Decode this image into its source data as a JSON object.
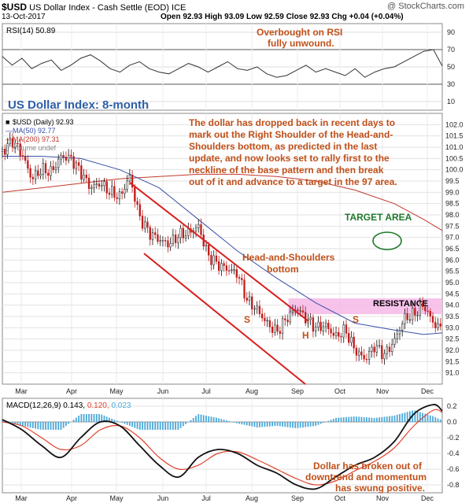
{
  "header": {
    "symbol": "$USD",
    "name": "US Dollar Index - Cash Settle (EOD)",
    "exchange": "ICE",
    "watermark": "@ StockCharts.com",
    "date": "13-Oct-2017",
    "ohlc": {
      "open_label": "Open",
      "open": "92.93",
      "high_label": "High",
      "high": "93.09",
      "low_label": "Low",
      "low": "92.59",
      "close_label": "Close",
      "close": "92.93",
      "chg_label": "Chg",
      "chg": "+0.04 (+0.04%)"
    }
  },
  "chart_data": [
    {
      "type": "line",
      "panel": "rsi",
      "legend": "RSI(14) 50.89",
      "ylim": [
        0,
        100
      ],
      "yticks": [
        "90",
        "70",
        "50",
        "30",
        "10"
      ],
      "overbought": 70,
      "oversold": 30,
      "annotation": [
        "Overbought on RSI",
        "fully unwound."
      ],
      "x": [
        0,
        10,
        20,
        30,
        40,
        50,
        60,
        70,
        80,
        90,
        100,
        110,
        120,
        130,
        140,
        150,
        160,
        170,
        180,
        190,
        200,
        210,
        220,
        230,
        240,
        250,
        260,
        270,
        280,
        290,
        300,
        310,
        320,
        330,
        340,
        350,
        360,
        370,
        380,
        390,
        400,
        410,
        420,
        430,
        440,
        449
      ],
      "values": [
        62,
        52,
        60,
        48,
        54,
        58,
        46,
        52,
        60,
        64,
        57,
        48,
        44,
        52,
        56,
        48,
        44,
        42,
        48,
        54,
        50,
        44,
        50,
        56,
        48,
        46,
        50,
        42,
        38,
        40,
        46,
        52,
        44,
        48,
        44,
        40,
        48,
        38,
        44,
        48,
        50,
        56,
        62,
        68,
        70,
        51
      ]
    },
    {
      "type": "candlestick",
      "panel": "price",
      "title": "US Dollar Index: 8-month",
      "legend": [
        {
          "symbol": "■",
          "label": "$USD (Daily) 92.93",
          "color": "#000000"
        },
        {
          "symbol": "—",
          "label": "MA(50) 92.77",
          "color": "#3a4fa8"
        },
        {
          "symbol": "—",
          "label": "MA(200) 97.31",
          "color": "#c0392b"
        },
        {
          "symbol": "▯",
          "label": "Volume undef",
          "color": "#888888"
        }
      ],
      "ylim": [
        90.5,
        102.5
      ],
      "yticks": [
        "102.0",
        "101.5",
        "101.0",
        "100.5",
        "100.0",
        "99.5",
        "99.0",
        "98.5",
        "98.0",
        "97.5",
        "97.0",
        "96.5",
        "96.0",
        "95.5",
        "95.0",
        "94.5",
        "94.0",
        "93.5",
        "93.0",
        "92.5",
        "92.0",
        "91.5",
        "91.0"
      ],
      "xticks": [
        "Mar",
        "Apr",
        "May",
        "Jun",
        "Jul",
        "Aug",
        "Sep",
        "Oct",
        "Nov",
        "Dec"
      ],
      "xtick_pos": [
        27,
        91,
        148,
        207,
        262,
        320,
        378,
        432,
        486,
        543
      ],
      "close_x": [
        0,
        10,
        20,
        30,
        40,
        50,
        60,
        70,
        80,
        90,
        100,
        110,
        120,
        130,
        140,
        150,
        160,
        170,
        180,
        190,
        200,
        210,
        220,
        230,
        240,
        250,
        260,
        270,
        280,
        290,
        300,
        310,
        320,
        330,
        340,
        350,
        360,
        370,
        380,
        390,
        400,
        410,
        420,
        430,
        440,
        449
      ],
      "close": [
        100.8,
        101.3,
        100.7,
        99.6,
        100.0,
        99.9,
        100.6,
        100.5,
        99.9,
        99.2,
        99.4,
        99.0,
        98.8,
        99.7,
        97.9,
        97.2,
        96.9,
        96.7,
        97.1,
        97.2,
        97.5,
        96.2,
        95.8,
        95.6,
        95.4,
        94.2,
        93.8,
        93.2,
        92.8,
        93.4,
        93.9,
        93.4,
        93.0,
        93.1,
        92.6,
        92.9,
        92.0,
        91.6,
        92.2,
        91.8,
        92.4,
        93.4,
        93.6,
        94.0,
        93.2,
        92.9
      ],
      "ma50_x": [
        0,
        40,
        80,
        120,
        160,
        200,
        240,
        280,
        320,
        360,
        400,
        430,
        449
      ],
      "ma50": [
        100.6,
        100.6,
        100.5,
        100.0,
        99.2,
        97.8,
        96.4,
        95.2,
        94.1,
        93.2,
        92.9,
        92.7,
        92.77
      ],
      "ma200_x": [
        0,
        40,
        80,
        120,
        160,
        200,
        240,
        280,
        320,
        360,
        400,
        430,
        449
      ],
      "ma200": [
        99.0,
        99.2,
        99.4,
        99.6,
        99.7,
        99.8,
        99.8,
        99.7,
        99.5,
        99.1,
        98.5,
        97.8,
        97.31
      ],
      "resistance": {
        "label": "RESISTANCE",
        "from": 93.6,
        "to": 94.3
      },
      "labels": {
        "h_and_s": [
          "Head-and-Shoulders",
          "bottom"
        ],
        "target": "TARGET AREA",
        "s": "S",
        "h": "H"
      },
      "comment": [
        "The dollar has dropped back in recent days to",
        "mark out the Right Shoulder of the Head-and-",
        "Shoulders bottom, as predicted in the last",
        "update, and now looks set to rally first to the",
        "neckline of the base pattern and then break",
        "out of it and advance to a target in the 97 area."
      ]
    },
    {
      "type": "line",
      "panel": "macd",
      "legend_prefix": "MACD(12,26,9)",
      "legend_values": [
        "0.143,",
        "0.120,",
        "0.023"
      ],
      "ylim": [
        -0.9,
        0.3
      ],
      "yticks": [
        "0.2",
        "0.0",
        "-0.2",
        "-0.4",
        "-0.6",
        "-0.8"
      ],
      "xticks": [
        "Mar",
        "Apr",
        "May",
        "Jun",
        "Jul",
        "Aug",
        "Sep",
        "Oct",
        "Nov",
        "Dec"
      ],
      "x": [
        0,
        20,
        40,
        60,
        80,
        100,
        120,
        140,
        160,
        180,
        200,
        220,
        240,
        260,
        280,
        300,
        320,
        340,
        360,
        380,
        400,
        420,
        440,
        449
      ],
      "macd": [
        0.03,
        -0.1,
        -0.3,
        -0.45,
        -0.2,
        0.0,
        -0.05,
        -0.3,
        -0.55,
        -0.7,
        -0.45,
        -0.35,
        -0.4,
        -0.55,
        -0.65,
        -0.8,
        -0.85,
        -0.7,
        -0.55,
        -0.45,
        -0.25,
        0.1,
        0.22,
        0.14
      ],
      "signal": [
        0.0,
        -0.05,
        -0.2,
        -0.35,
        -0.3,
        -0.1,
        -0.05,
        -0.2,
        -0.45,
        -0.6,
        -0.55,
        -0.4,
        -0.38,
        -0.48,
        -0.6,
        -0.72,
        -0.8,
        -0.75,
        -0.62,
        -0.5,
        -0.33,
        -0.05,
        0.15,
        0.12
      ],
      "hist": [
        0.03,
        -0.05,
        -0.1,
        -0.1,
        0.1,
        0.1,
        0.0,
        -0.1,
        -0.1,
        -0.1,
        0.1,
        0.05,
        -0.02,
        -0.07,
        -0.05,
        -0.08,
        -0.05,
        0.05,
        0.07,
        0.05,
        0.08,
        0.15,
        0.07,
        0.02
      ],
      "annotation": [
        "Dollar has broken out of",
        "downtrend and momentum",
        "has swung positive."
      ]
    }
  ],
  "colors": {
    "annotation": "#c0501a",
    "title": "#2d5fa6",
    "ma50": "#3a4fa8",
    "ma200": "#c0392b",
    "channel": "#d81e1e",
    "resistance": "#f6b8e8",
    "target": "#1d7a2a",
    "grid": "#d6d6d6",
    "hist": "#4aa8d8"
  }
}
